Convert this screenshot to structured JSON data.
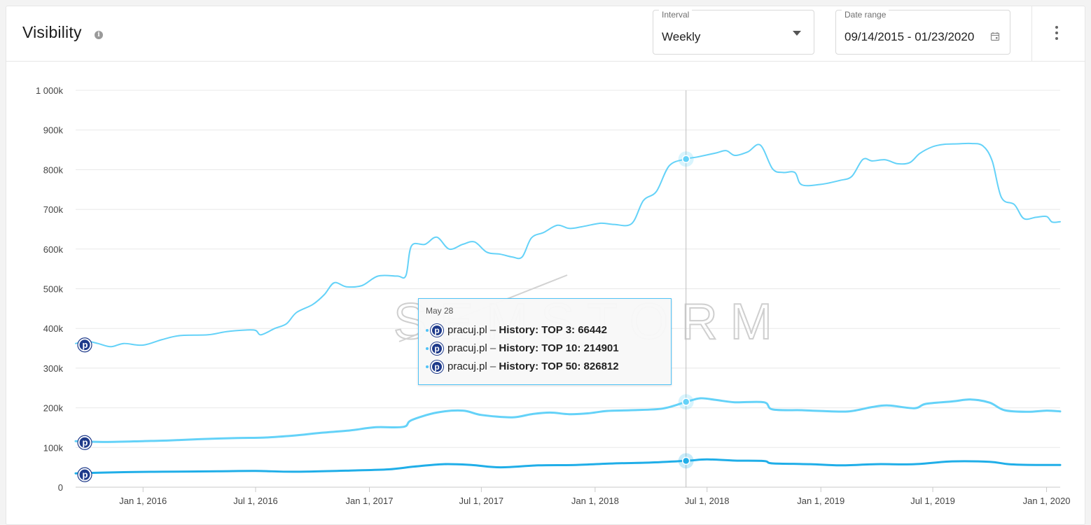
{
  "header": {
    "title": "Visibility",
    "info_icon": "info-icon",
    "interval": {
      "legend": "Interval",
      "value": "Weekly"
    },
    "date_range": {
      "legend": "Date range",
      "value": "09/14/2015 - 01/23/2020"
    },
    "menu_icon": "kebab-menu-icon"
  },
  "watermark": "SEMSTORM",
  "tooltip": {
    "date": "May 28",
    "rows": [
      {
        "domain": "pracuj.pl",
        "dash": " – ",
        "label": "History",
        "metric": ": TOP 3: 66442"
      },
      {
        "domain": "pracuj.pl",
        "dash": " – ",
        "label": "History",
        "metric": ": TOP 10: 214901"
      },
      {
        "domain": "pracuj.pl",
        "dash": " – ",
        "label": "History",
        "metric": ": TOP 50: 826812"
      }
    ]
  },
  "colors": {
    "top50": "#64d2f8",
    "top10": "#64d2f8",
    "top3": "#20aee8",
    "grid": "#e8e8e8",
    "logo": "#1e3a8a"
  },
  "chart_data": {
    "type": "line",
    "ylim": [
      0,
      1000000
    ],
    "yticks": [
      {
        "v": 0,
        "label": "0"
      },
      {
        "v": 100000,
        "label": "100k"
      },
      {
        "v": 200000,
        "label": "200k"
      },
      {
        "v": 300000,
        "label": "300k"
      },
      {
        "v": 400000,
        "label": "400k"
      },
      {
        "v": 500000,
        "label": "500k"
      },
      {
        "v": 600000,
        "label": "600k"
      },
      {
        "v": 700000,
        "label": "700k"
      },
      {
        "v": 800000,
        "label": "800k"
      },
      {
        "v": 900000,
        "label": "900k"
      },
      {
        "v": 1000000,
        "label": "1 000k"
      }
    ],
    "xrange": [
      "2015-09-14",
      "2020-01-23"
    ],
    "xticks": [
      {
        "date": "2016-01-01",
        "label": "Jan 1, 2016"
      },
      {
        "date": "2016-07-01",
        "label": "Jul 1, 2016"
      },
      {
        "date": "2017-01-01",
        "label": "Jan 1, 2017"
      },
      {
        "date": "2017-07-01",
        "label": "Jul 1, 2017"
      },
      {
        "date": "2018-01-01",
        "label": "Jan 1, 2018"
      },
      {
        "date": "2018-07-01",
        "label": "Jul 1, 2018"
      },
      {
        "date": "2019-01-01",
        "label": "Jan 1, 2019"
      },
      {
        "date": "2019-07-01",
        "label": "Jul 1, 2019"
      },
      {
        "date": "2020-01-01",
        "label": "Jan 1, 2020"
      }
    ],
    "highlight_date": "2018-05-28",
    "series": [
      {
        "name": "pracuj.pl – History: TOP 50",
        "points": [
          [
            "2015-09-14",
            362000
          ],
          [
            "2015-10-01",
            368000
          ],
          [
            "2015-10-20",
            362000
          ],
          [
            "2015-11-10",
            354000
          ],
          [
            "2015-12-01",
            362000
          ],
          [
            "2016-01-01",
            358000
          ],
          [
            "2016-02-01",
            372000
          ],
          [
            "2016-03-01",
            382000
          ],
          [
            "2016-04-15",
            384000
          ],
          [
            "2016-05-15",
            392000
          ],
          [
            "2016-06-15",
            396000
          ],
          [
            "2016-07-01",
            395000
          ],
          [
            "2016-07-10",
            384000
          ],
          [
            "2016-08-01",
            400000
          ],
          [
            "2016-08-20",
            412000
          ],
          [
            "2016-09-05",
            440000
          ],
          [
            "2016-10-01",
            460000
          ],
          [
            "2016-10-20",
            485000
          ],
          [
            "2016-11-05",
            515000
          ],
          [
            "2016-11-25",
            505000
          ],
          [
            "2016-12-20",
            508000
          ],
          [
            "2017-01-15",
            532000
          ],
          [
            "2017-02-15",
            532000
          ],
          [
            "2017-03-01",
            533000
          ],
          [
            "2017-03-10",
            608000
          ],
          [
            "2017-04-01",
            612000
          ],
          [
            "2017-04-20",
            630000
          ],
          [
            "2017-05-10",
            600000
          ],
          [
            "2017-06-01",
            612000
          ],
          [
            "2017-06-20",
            618000
          ],
          [
            "2017-07-10",
            592000
          ],
          [
            "2017-08-01",
            587000
          ],
          [
            "2017-08-20",
            580000
          ],
          [
            "2017-09-05",
            580000
          ],
          [
            "2017-09-20",
            628000
          ],
          [
            "2017-10-10",
            642000
          ],
          [
            "2017-11-01",
            660000
          ],
          [
            "2017-11-20",
            652000
          ],
          [
            "2017-12-10",
            656000
          ],
          [
            "2018-01-10",
            665000
          ],
          [
            "2018-02-01",
            662000
          ],
          [
            "2018-03-01",
            664000
          ],
          [
            "2018-03-20",
            722000
          ],
          [
            "2018-04-10",
            745000
          ],
          [
            "2018-05-01",
            810000
          ],
          [
            "2018-05-28",
            826812
          ],
          [
            "2018-06-15",
            832000
          ],
          [
            "2018-07-15",
            842000
          ],
          [
            "2018-08-01",
            848000
          ],
          [
            "2018-08-15",
            836000
          ],
          [
            "2018-09-05",
            845000
          ],
          [
            "2018-09-25",
            862000
          ],
          [
            "2018-10-15",
            802000
          ],
          [
            "2018-11-01",
            793000
          ],
          [
            "2018-11-20",
            793000
          ],
          [
            "2018-12-01",
            762000
          ],
          [
            "2019-01-01",
            763000
          ],
          [
            "2019-02-01",
            773000
          ],
          [
            "2019-02-20",
            783000
          ],
          [
            "2019-03-10",
            826000
          ],
          [
            "2019-03-25",
            822000
          ],
          [
            "2019-04-15",
            825000
          ],
          [
            "2019-05-05",
            815000
          ],
          [
            "2019-05-25",
            818000
          ],
          [
            "2019-06-10",
            841000
          ],
          [
            "2019-07-01",
            858000
          ],
          [
            "2019-07-20",
            864000
          ],
          [
            "2019-08-10",
            865000
          ],
          [
            "2019-09-01",
            866000
          ],
          [
            "2019-09-20",
            860000
          ],
          [
            "2019-10-05",
            822000
          ],
          [
            "2019-10-20",
            730000
          ],
          [
            "2019-11-10",
            712000
          ],
          [
            "2019-11-25",
            677000
          ],
          [
            "2019-12-15",
            680000
          ],
          [
            "2020-01-01",
            682000
          ],
          [
            "2020-01-10",
            668000
          ],
          [
            "2020-01-23",
            669000
          ]
        ]
      },
      {
        "name": "pracuj.pl – History: TOP 10",
        "points": [
          [
            "2015-09-14",
            116000
          ],
          [
            "2015-11-01",
            114000
          ],
          [
            "2016-01-01",
            116000
          ],
          [
            "2016-02-15",
            118000
          ],
          [
            "2016-04-01",
            121000
          ],
          [
            "2016-06-01",
            124000
          ],
          [
            "2016-07-15",
            125000
          ],
          [
            "2016-09-01",
            130000
          ],
          [
            "2016-10-15",
            137000
          ],
          [
            "2016-12-01",
            143000
          ],
          [
            "2017-01-10",
            151000
          ],
          [
            "2017-02-25",
            152000
          ],
          [
            "2017-03-10",
            169000
          ],
          [
            "2017-04-20",
            188000
          ],
          [
            "2017-06-01",
            193000
          ],
          [
            "2017-07-01",
            182000
          ],
          [
            "2017-08-20",
            176000
          ],
          [
            "2017-09-20",
            184000
          ],
          [
            "2017-10-20",
            188000
          ],
          [
            "2017-11-20",
            184000
          ],
          [
            "2017-12-20",
            186000
          ],
          [
            "2018-01-20",
            192000
          ],
          [
            "2018-03-01",
            194000
          ],
          [
            "2018-04-20",
            198000
          ],
          [
            "2018-05-28",
            214901
          ],
          [
            "2018-06-20",
            224000
          ],
          [
            "2018-07-15",
            220000
          ],
          [
            "2018-08-15",
            214000
          ],
          [
            "2018-10-01",
            214000
          ],
          [
            "2018-10-15",
            196000
          ],
          [
            "2018-12-01",
            194000
          ],
          [
            "2019-01-01",
            192000
          ],
          [
            "2019-02-15",
            191000
          ],
          [
            "2019-03-25",
            202000
          ],
          [
            "2019-04-20",
            206000
          ],
          [
            "2019-06-01",
            199000
          ],
          [
            "2019-06-20",
            210000
          ],
          [
            "2019-08-01",
            216000
          ],
          [
            "2019-09-01",
            221000
          ],
          [
            "2019-10-01",
            213000
          ],
          [
            "2019-10-25",
            194000
          ],
          [
            "2019-12-01",
            190000
          ],
          [
            "2020-01-01",
            193000
          ],
          [
            "2020-01-23",
            191000
          ]
        ]
      },
      {
        "name": "pracuj.pl – History: TOP 3",
        "points": [
          [
            "2015-09-14",
            35000
          ],
          [
            "2015-12-01",
            38000
          ],
          [
            "2016-02-01",
            39000
          ],
          [
            "2016-05-01",
            40000
          ],
          [
            "2016-07-01",
            41000
          ],
          [
            "2016-09-01",
            39000
          ],
          [
            "2016-12-01",
            42000
          ],
          [
            "2017-02-01",
            45000
          ],
          [
            "2017-03-15",
            52000
          ],
          [
            "2017-05-01",
            58000
          ],
          [
            "2017-06-15",
            56000
          ],
          [
            "2017-08-01",
            50000
          ],
          [
            "2017-10-01",
            55000
          ],
          [
            "2017-12-01",
            56000
          ],
          [
            "2018-02-01",
            60000
          ],
          [
            "2018-04-01",
            62000
          ],
          [
            "2018-05-28",
            66442
          ],
          [
            "2018-07-01",
            70000
          ],
          [
            "2018-08-15",
            67000
          ],
          [
            "2018-10-01",
            66000
          ],
          [
            "2018-10-15",
            60000
          ],
          [
            "2018-12-15",
            58000
          ],
          [
            "2019-02-01",
            55000
          ],
          [
            "2019-04-01",
            58000
          ],
          [
            "2019-06-01",
            58000
          ],
          [
            "2019-08-01",
            65000
          ],
          [
            "2019-10-01",
            64000
          ],
          [
            "2019-11-01",
            58000
          ],
          [
            "2019-12-15",
            56000
          ],
          [
            "2020-01-23",
            56000
          ]
        ]
      }
    ]
  }
}
